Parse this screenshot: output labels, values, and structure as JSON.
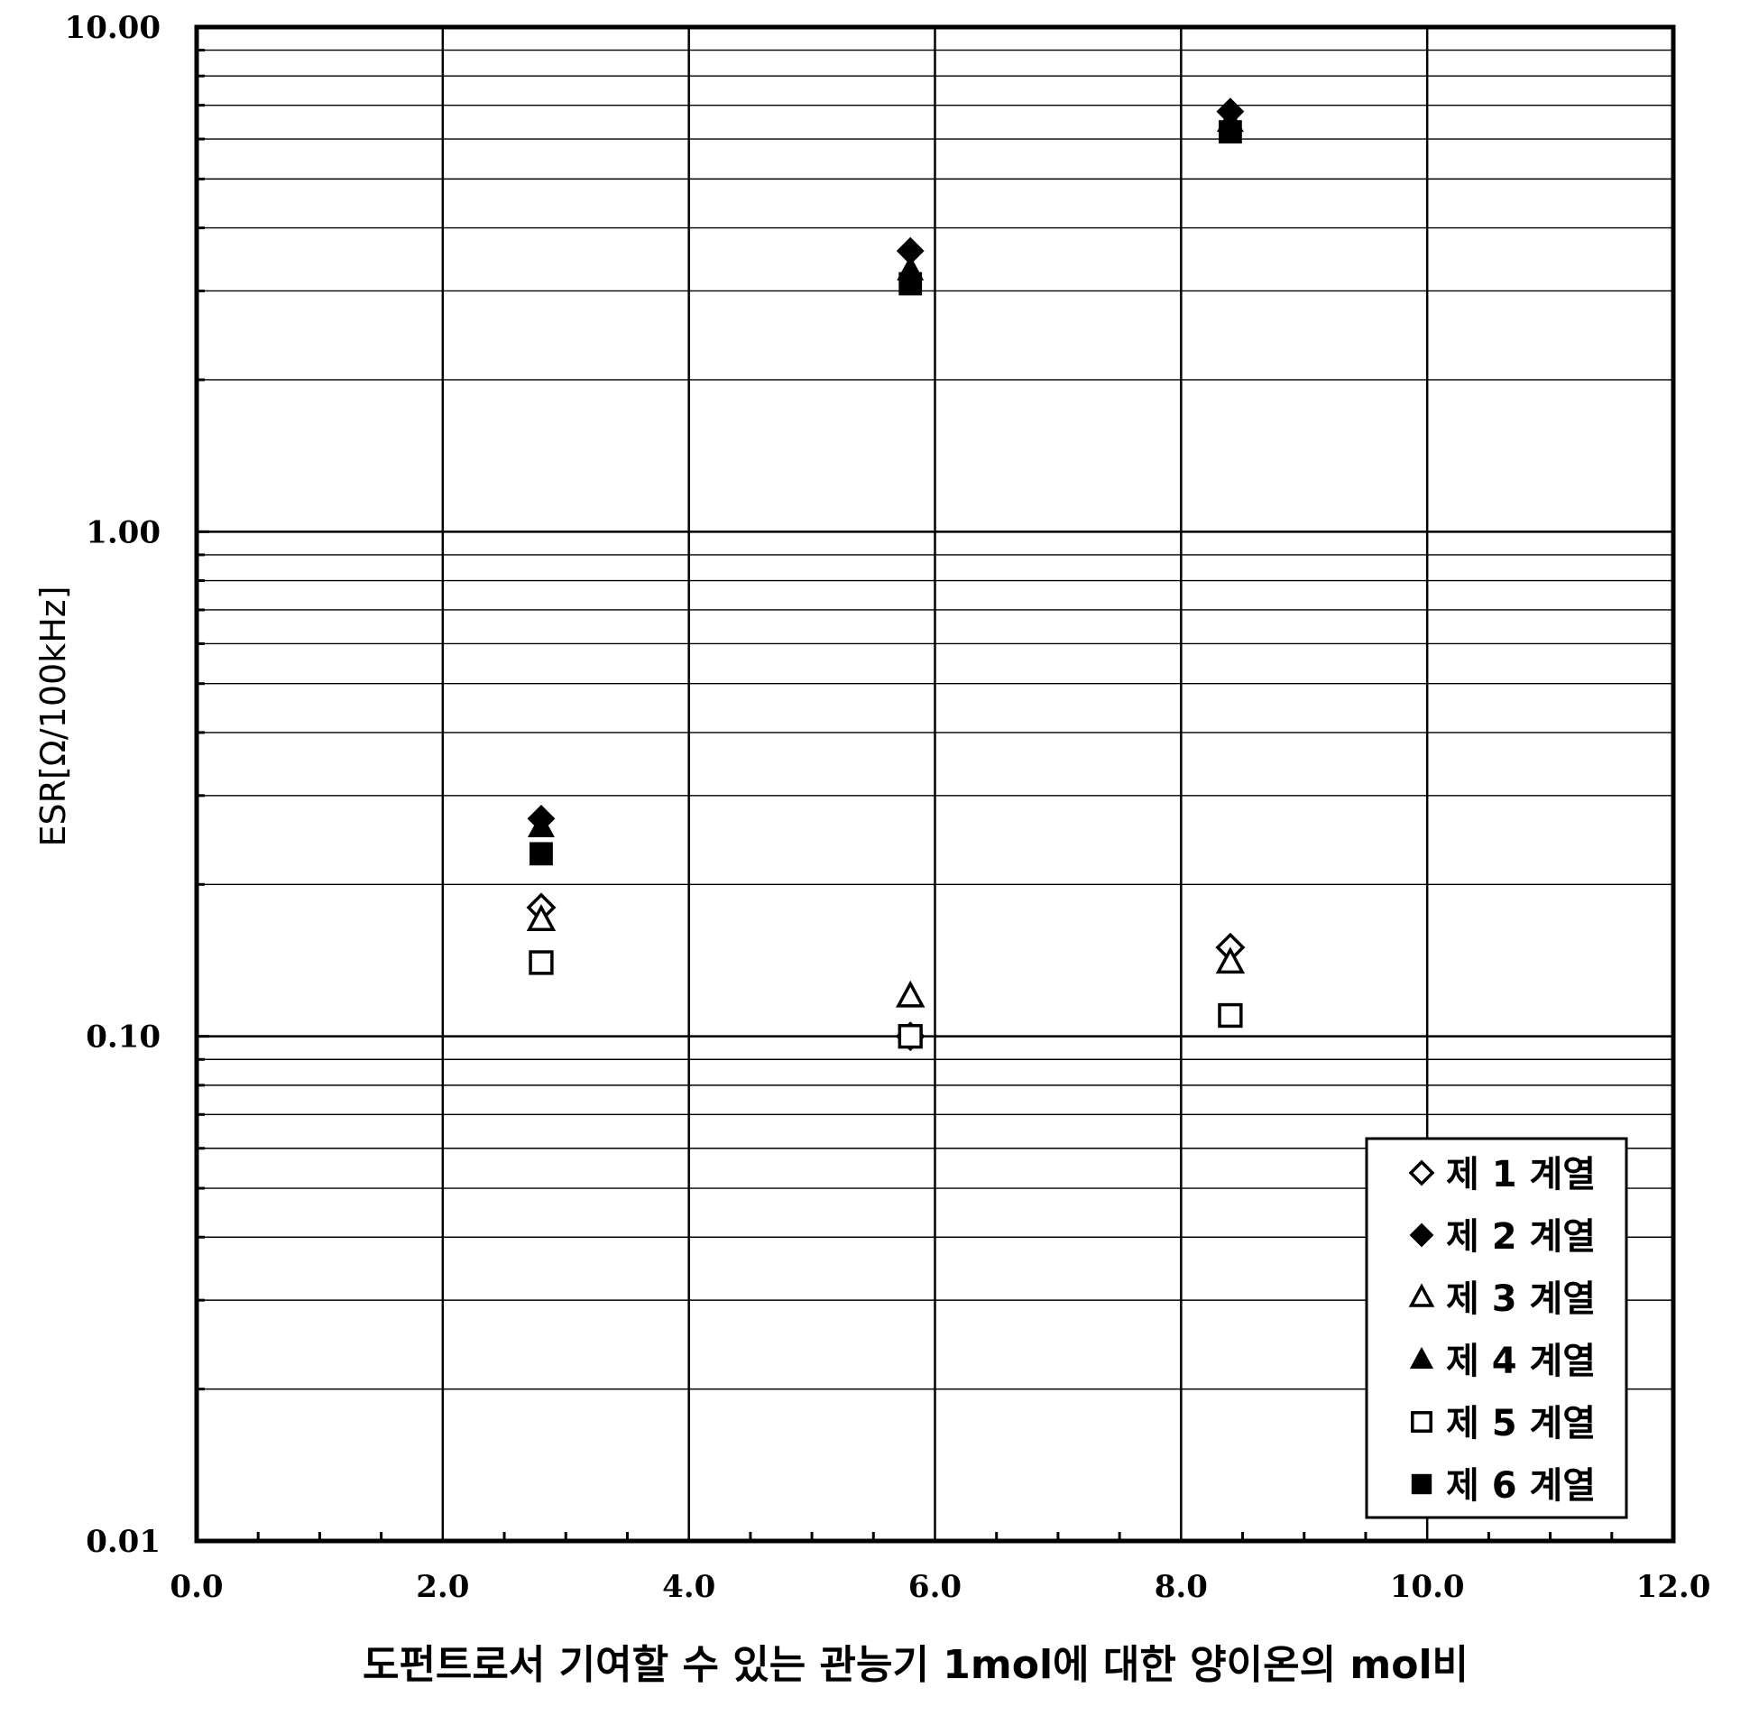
{
  "chart_data": {
    "type": "scatter",
    "title": "",
    "xlabel": "도펀트로서 기여할 수 있는 관능기 1mol에 대한 양이온의 mol비",
    "ylabel": "ESR[Ω/100kHz]",
    "xlim": [
      0,
      12
    ],
    "ylim": [
      0.01,
      10
    ],
    "yscale": "log",
    "grid": true,
    "legend_position": "bottom-right",
    "x_ticks": [
      "0.0",
      "2.0",
      "4.0",
      "6.0",
      "8.0",
      "10.0",
      "12.0"
    ],
    "y_ticks": [
      "0.01",
      "0.10",
      "1.00",
      "10.00"
    ],
    "series": [
      {
        "name": "제 1 계열",
        "marker": "diamond-open",
        "x": [
          2.8,
          5.8,
          8.4
        ],
        "y": [
          0.18,
          0.1,
          0.15
        ]
      },
      {
        "name": "제 2 계열",
        "marker": "diamond-filled",
        "x": [
          2.8,
          5.8,
          8.4
        ],
        "y": [
          0.27,
          3.6,
          6.8
        ]
      },
      {
        "name": "제 3 계열",
        "marker": "triangle-open",
        "x": [
          2.8,
          5.8,
          8.4
        ],
        "y": [
          0.17,
          0.12,
          0.14
        ]
      },
      {
        "name": "제 4 계열",
        "marker": "triangle-filled",
        "x": [
          2.8,
          5.8,
          8.4
        ],
        "y": [
          0.26,
          3.3,
          6.5
        ]
      },
      {
        "name": "제 5 계열",
        "marker": "square-open",
        "x": [
          2.8,
          5.8,
          8.4
        ],
        "y": [
          0.14,
          0.1,
          0.11
        ]
      },
      {
        "name": "제 6 계열",
        "marker": "square-filled",
        "x": [
          2.8,
          5.8,
          8.4
        ],
        "y": [
          0.23,
          3.1,
          6.2
        ]
      }
    ]
  }
}
